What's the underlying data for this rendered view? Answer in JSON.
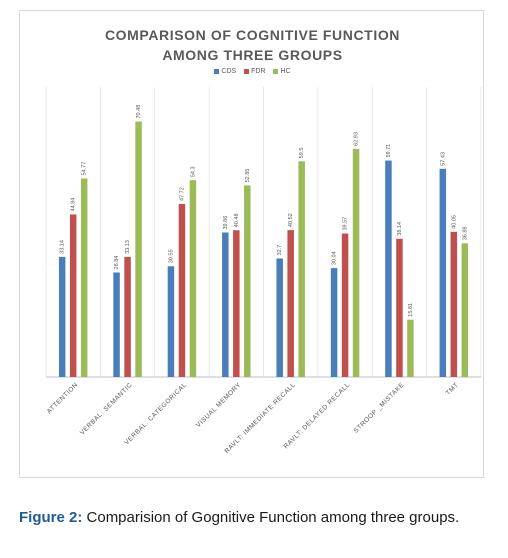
{
  "caption": {
    "label": "Figure 2:",
    "text": "Comparision of Gognitive Function among three groups."
  },
  "colors": {
    "CDS": "#4a7ebb",
    "FDR": "#c0504d",
    "HC": "#9bbb59"
  },
  "chart_data": {
    "type": "bar",
    "title_line1": "COMPARISON OF COGNITIVE FUNCTION",
    "title_line2": "AMONG THREE GROUPS",
    "xlabel": "",
    "ylabel": "",
    "ylim": [
      0,
      80
    ],
    "grid": "vertical separators",
    "legend_position": "top",
    "categories": [
      "ATTENTION",
      "VERBAL: SEMANTIC",
      "VERBAL: CATEGORICAL",
      "VISUAL MEMORY",
      "RAVLT: IMMEDIATE RECALL",
      "RAVLT: DELAYED RECALL",
      "STROOP _MISTAKE",
      "TMT"
    ],
    "series": [
      {
        "name": "CDS",
        "values": [
          33.14,
          28.84,
          30.55,
          39.86,
          32.7,
          30.04,
          59.71,
          57.43
        ]
      },
      {
        "name": "FDR",
        "values": [
          44.84,
          33.13,
          47.72,
          40.48,
          40.52,
          39.57,
          38.14,
          40.05
        ]
      },
      {
        "name": "HC",
        "values": [
          54.77,
          70.48,
          54.3,
          52.85,
          59.5,
          62.93,
          15.81,
          36.88
        ]
      }
    ]
  }
}
